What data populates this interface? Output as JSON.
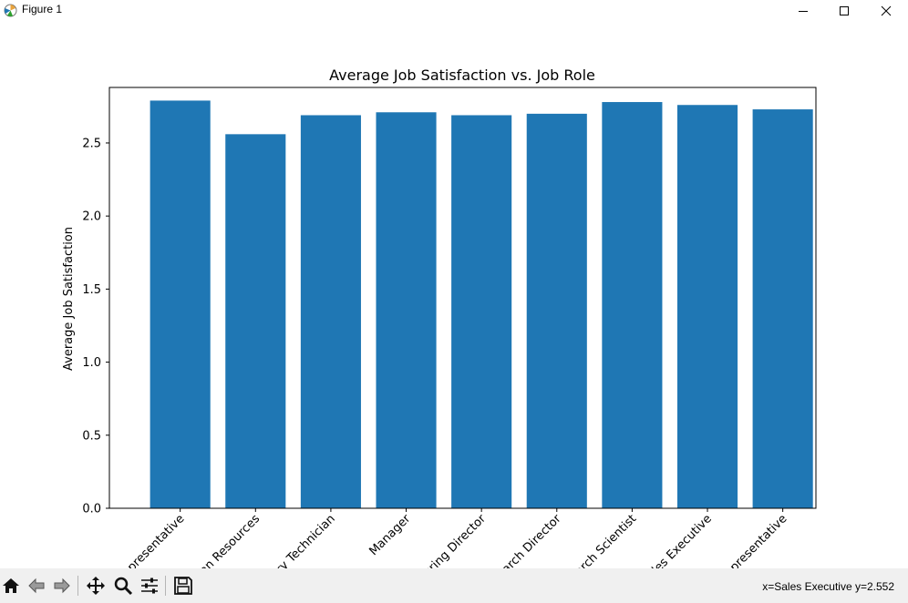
{
  "window": {
    "title": "Figure 1",
    "icons": [
      "matplotlib-icon",
      "minimize-icon",
      "maximize-icon",
      "close-icon"
    ]
  },
  "toolbar": {
    "icons": [
      "home-icon",
      "back-icon",
      "forward-icon",
      "pan-icon",
      "zoom-icon",
      "configure-subplots-icon",
      "save-icon"
    ],
    "status": "x=Sales Executive y=2.552"
  },
  "colors": {
    "bar": "#1f77b4"
  },
  "chart_data": {
    "type": "bar",
    "title": "Average Job Satisfaction vs. Job Role",
    "xlabel": "",
    "ylabel": "Average Job Satisfaction",
    "categories": [
      "Healthcare Representative",
      "Human Resources",
      "Laboratory Technician",
      "Manager",
      "Manufacturing Director",
      "Research Director",
      "Research Scientist",
      "Sales Executive",
      "Sales Representative"
    ],
    "values": [
      2.79,
      2.56,
      2.69,
      2.71,
      2.69,
      2.7,
      2.78,
      2.76,
      2.73
    ],
    "ylim": [
      0,
      2.88
    ],
    "yticks": [
      "0.0",
      "0.5",
      "1.0",
      "1.5",
      "2.0",
      "2.5"
    ],
    "grid": false
  }
}
